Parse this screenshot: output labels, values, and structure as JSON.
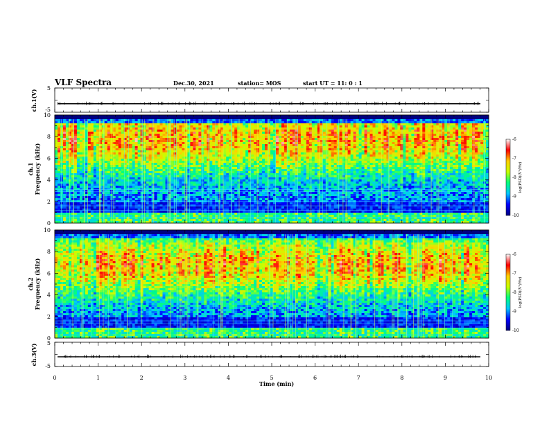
{
  "header": {
    "title": "VLF Spectra",
    "date": "Dec.30, 2021",
    "station": "station= MOS",
    "start_ut": "start  UT =   11: 0  : 1"
  },
  "chart_data": {
    "type": "heatmap",
    "title": "VLF Spectra",
    "x": {
      "label": "Time (min)",
      "range": [
        0,
        10
      ],
      "ticks": [
        "0",
        "1",
        "2",
        "3",
        "4",
        "5",
        "6",
        "7",
        "8",
        "9",
        "10"
      ]
    },
    "panels": [
      {
        "name": "ch.1(V)",
        "type": "line",
        "ylabel": "ch.1(V)",
        "ylim": [
          -5,
          5
        ],
        "yticks": [
          "5",
          "-5"
        ],
        "baseline": -1.5
      },
      {
        "name": "ch.1",
        "type": "heatmap",
        "ylabel": "ch.1\nFrequency (kHz)",
        "ylabel_lines": [
          "ch.1",
          "Frequency (kHz)"
        ],
        "ylim": [
          0,
          10
        ],
        "yticks": [
          "0",
          "2",
          "4",
          "6",
          "8",
          "10"
        ],
        "colorbar": {
          "label": "log(PSD)(V²/Hz)",
          "range": [
            -10,
            -6
          ],
          "ticks": [
            "-6",
            "-7",
            "-8",
            "-9",
            "-10"
          ]
        },
        "high_activity_band_khz": [
          2.0,
          10.0
        ],
        "dark_gap_band_khz": [
          1.0,
          2.0
        ]
      },
      {
        "name": "ch.2",
        "type": "heatmap",
        "ylabel": "ch.2\nFrequency (kHz)",
        "ylabel_lines": [
          "ch.2",
          "Frequency (kHz)"
        ],
        "ylim": [
          0,
          10
        ],
        "yticks": [
          "0",
          "2",
          "4",
          "6",
          "8",
          "10"
        ],
        "colorbar": {
          "label": "log(PSD)(V²/Hz)",
          "range": [
            -10,
            -6
          ],
          "ticks": [
            "-6",
            "-7",
            "-8",
            "-9",
            "-10"
          ]
        },
        "high_activity_band_khz": [
          2.0,
          9.0
        ],
        "dark_gap_band_khz": [
          1.0,
          2.0
        ]
      },
      {
        "name": "ch.3(V)",
        "type": "line",
        "ylabel": "ch.3(V)",
        "ylim": [
          -5,
          5
        ],
        "yticks": [
          "5",
          "-5"
        ],
        "baseline": -1.0
      }
    ],
    "colormap": [
      "#000080",
      "#0000ff",
      "#00c8ff",
      "#00ff80",
      "#c8ff00",
      "#ffd000",
      "#ff0000",
      "#ffffff"
    ]
  }
}
